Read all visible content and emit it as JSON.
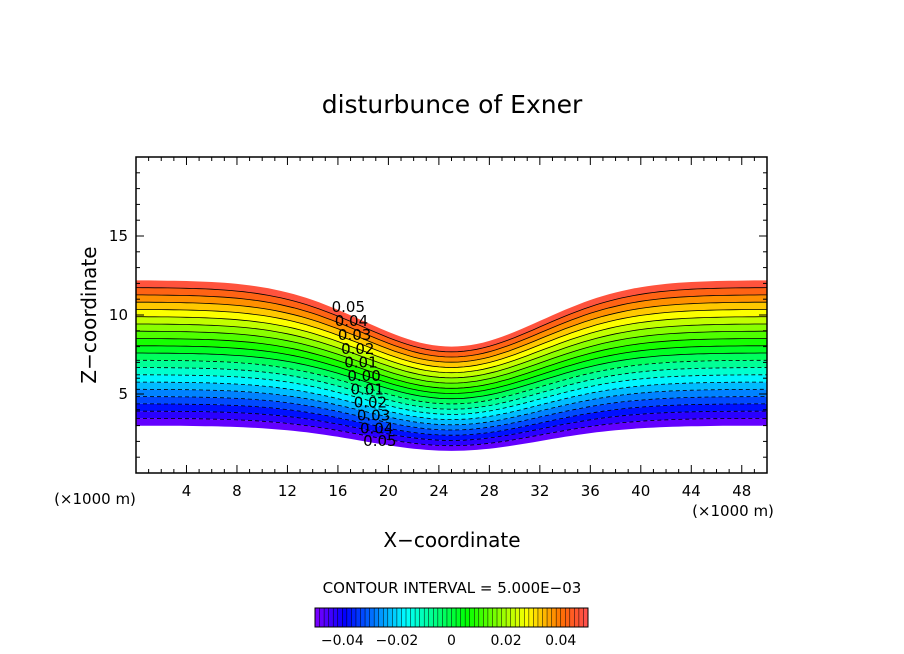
{
  "chart_data": {
    "type": "contour",
    "title": "disturbunce of Exner",
    "xlabel": "X−coordinate",
    "ylabel": "Z−coordinate",
    "x_unit": "(×1000 m)",
    "y_unit": "(×1000 m)",
    "xlim": [
      0,
      50
    ],
    "ylim": [
      0,
      20
    ],
    "x_ticks": [
      4,
      8,
      12,
      16,
      20,
      24,
      28,
      32,
      36,
      40,
      44,
      48
    ],
    "y_ticks": [
      5,
      10,
      15
    ],
    "contour_interval_text": "CONTOUR INTERVAL = 5.000E−03",
    "contour_interval": 0.005,
    "value_range": [
      -0.05,
      0.05
    ],
    "lower_boundary_z": 3,
    "upper_boundary_z": 12.2,
    "terrain_dip_center_x": 25,
    "terrain_dip_depth": 4.2,
    "contour_labels": [
      "0.05",
      "0.04",
      "0.03",
      "0.02",
      "0.01",
      "0.00",
      "0.01",
      "0.02",
      "0.03",
      "0.04",
      "0.05"
    ],
    "negative_contours_dashed": true,
    "colorbar": {
      "colormap": "rainbow",
      "range": [
        -0.05,
        0.05
      ],
      "tick_labels": [
        "−0.04",
        "−0.02",
        "0",
        "0.02",
        "0.04"
      ],
      "tick_values": [
        -0.04,
        -0.02,
        0,
        0.02,
        0.04
      ]
    }
  }
}
